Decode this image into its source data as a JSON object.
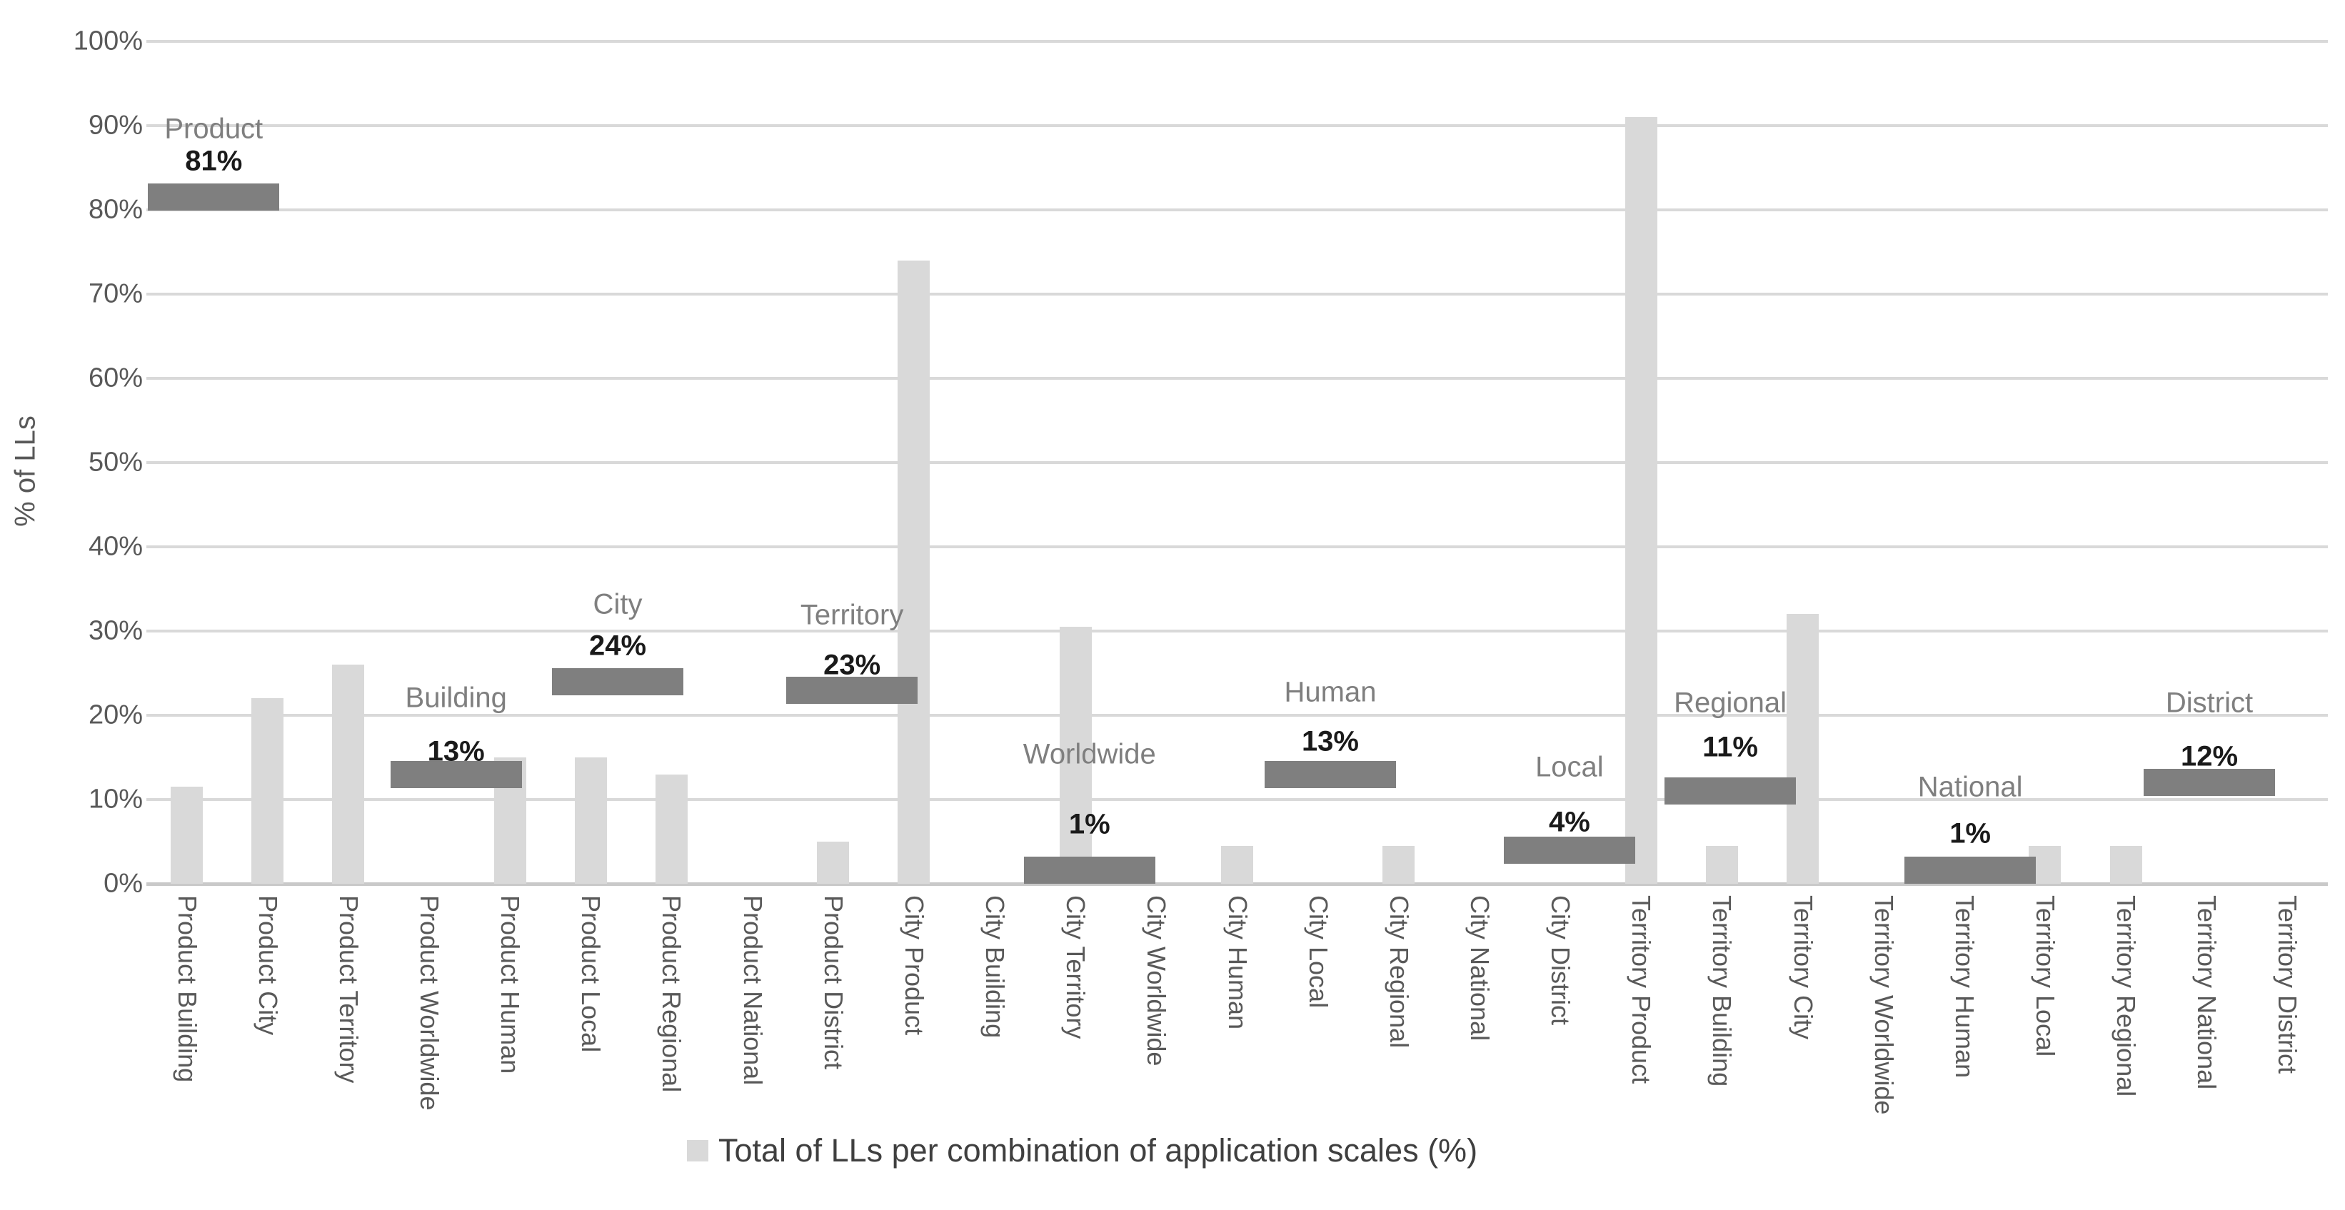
{
  "chart_data": {
    "type": "bar",
    "ylabel": "% of LLs",
    "ylim": [
      0,
      100
    ],
    "grid": true,
    "y_ticks": [
      {
        "label": "0%",
        "value": 0
      },
      {
        "label": "10%",
        "value": 10
      },
      {
        "label": "20%",
        "value": 20
      },
      {
        "label": "30%",
        "value": 30
      },
      {
        "label": "40%",
        "value": 40
      },
      {
        "label": "50%",
        "value": 50
      },
      {
        "label": "60%",
        "value": 60
      },
      {
        "label": "70%",
        "value": 70
      },
      {
        "label": "80%",
        "value": 80
      },
      {
        "label": "90%",
        "value": 90
      },
      {
        "label": "100%",
        "value": 100
      }
    ],
    "categories": [
      "Product Building",
      "Product City",
      "Product Territory",
      "Product Worldwide",
      "Product Human",
      "Product Local",
      "Product Regional",
      "Product National",
      "Product District",
      "City Product",
      "City Building",
      "City Territory",
      "City Worldwide",
      "City Human",
      "City Local",
      "City Regional",
      "City National",
      "City District",
      "Territory Product",
      "Territory Building",
      "Territory City",
      "Territory Worldwide",
      "Territory Human",
      "Territory Local",
      "Territory Regional",
      "Territory National",
      "Territory District"
    ],
    "series": [
      {
        "name": "Total of LLs per combination of application scales (%)",
        "color": "#d9d9d9",
        "values": [
          11.5,
          22,
          26,
          0,
          15,
          15,
          13,
          0,
          5,
          74,
          0,
          30.5,
          0,
          4.5,
          0,
          4.5,
          0,
          0,
          91,
          4.5,
          32,
          0,
          0,
          4.5,
          4.5,
          0,
          0
        ]
      }
    ],
    "scale_total_markers": [
      {
        "name": "Product",
        "value_label": "81%",
        "value": 81,
        "bar_center": 81.5,
        "start_slot": 0.02,
        "name_y": 89.6,
        "value_y": 85.8
      },
      {
        "name": "Building",
        "value_label": "13%",
        "value": 13,
        "bar_center": 13,
        "start_slot": 3.02,
        "name_y": 22.0,
        "value_y": 15.7
      },
      {
        "name": "City",
        "value_label": "24%",
        "value": 24,
        "bar_center": 24,
        "start_slot": 5.02,
        "name_y": 33.1,
        "value_y": 28.2
      },
      {
        "name": "Territory",
        "value_label": "23%",
        "value": 23,
        "bar_center": 23,
        "start_slot": 7.92,
        "name_y": 31.9,
        "value_y": 25.9
      },
      {
        "name": "Worldwide",
        "value_label": "1%",
        "value": 1,
        "bar_center": 1.6,
        "start_slot": 10.86,
        "name_y": 15.3,
        "value_y": 7.0
      },
      {
        "name": "Human",
        "value_label": "13%",
        "value": 13,
        "bar_center": 13,
        "start_slot": 13.84,
        "name_y": 22.7,
        "value_y": 16.9
      },
      {
        "name": "Local",
        "value_label": "4%",
        "value": 4,
        "bar_center": 4,
        "start_slot": 16.8,
        "name_y": 13.8,
        "value_y": 7.3
      },
      {
        "name": "Regional",
        "value_label": "11%",
        "value": 11,
        "bar_center": 11,
        "start_slot": 18.79,
        "name_y": 21.4,
        "value_y": 16.2
      },
      {
        "name": "National",
        "value_label": "1%",
        "value": 1,
        "bar_center": 1.6,
        "start_slot": 21.76,
        "name_y": 11.4,
        "value_y": 5.9
      },
      {
        "name": "District",
        "value_label": "12%",
        "value": 12,
        "bar_center": 12,
        "start_slot": 24.72,
        "name_y": 21.4,
        "value_y": 15.1
      }
    ],
    "legend": {
      "label": "Total of LLs per combination of application scales (%)",
      "swatch_color": "#d9d9d9"
    },
    "colors": {
      "column_fill": "#d9d9d9",
      "marker_fill": "#7f7f7f",
      "gridline": "#d9d9d9",
      "axis_line": "#c9c9c9",
      "tick_text": "#595959",
      "scale_name_text": "#7f7f7f",
      "value_text": "#1a1a1a"
    }
  }
}
